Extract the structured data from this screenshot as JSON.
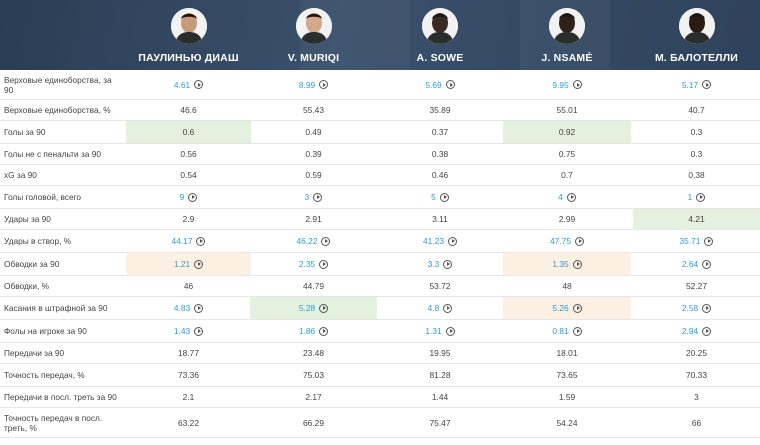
{
  "players": [
    {
      "name": "ПАУЛИНЬЮ ДИАШ",
      "avatar": "player-photo"
    },
    {
      "name": "V. MURIQI",
      "avatar": "player-photo"
    },
    {
      "name": "A. SOWE",
      "avatar": "player-photo"
    },
    {
      "name": "J. NSAMÉ",
      "avatar": "player-photo"
    },
    {
      "name": "M. БАЛОТЕЛЛИ",
      "avatar": "player-photo"
    }
  ],
  "colors": {
    "header_bg": "#34495f",
    "link": "#2a9fd6",
    "highlight_green": "#e4f1df",
    "highlight_orange": "#fbf0e1"
  },
  "rows": [
    {
      "label": "Верховые единоборства, за 90",
      "values": [
        "4.61",
        "8.99",
        "5.69",
        "9.95",
        "5.17"
      ],
      "link": [
        true,
        true,
        true,
        true,
        true
      ],
      "play": [
        true,
        true,
        true,
        true,
        true
      ],
      "hl": [
        "",
        "",
        "",
        "",
        ""
      ]
    },
    {
      "label": "Верховые единоборства, %",
      "values": [
        "46.6",
        "55.43",
        "35.89",
        "55.01",
        "40.7"
      ],
      "link": [
        false,
        false,
        false,
        false,
        false
      ],
      "play": [
        false,
        false,
        false,
        false,
        false
      ],
      "hl": [
        "",
        "",
        "",
        "",
        ""
      ]
    },
    {
      "label": "Голы за 90",
      "values": [
        "0.6",
        "0.49",
        "0.37",
        "0.92",
        "0.3"
      ],
      "link": [
        false,
        false,
        false,
        false,
        false
      ],
      "play": [
        false,
        false,
        false,
        false,
        false
      ],
      "hl": [
        "green",
        "",
        "",
        "green",
        ""
      ]
    },
    {
      "label": "Голы не с пенальти за 90",
      "values": [
        "0.56",
        "0.39",
        "0.38",
        "0.75",
        "0.3"
      ],
      "link": [
        false,
        false,
        false,
        false,
        false
      ],
      "play": [
        false,
        false,
        false,
        false,
        false
      ],
      "hl": [
        "",
        "",
        "",
        "",
        ""
      ]
    },
    {
      "label": "xG за 90",
      "values": [
        "0.54",
        "0.59",
        "0.46",
        "0.7",
        "0.38"
      ],
      "link": [
        false,
        false,
        false,
        false,
        false
      ],
      "play": [
        false,
        false,
        false,
        false,
        false
      ],
      "hl": [
        "",
        "",
        "",
        "",
        ""
      ]
    },
    {
      "label": "Голы головой, всего",
      "values": [
        "9",
        "3",
        "5",
        "4",
        "1"
      ],
      "link": [
        true,
        true,
        true,
        true,
        true
      ],
      "play": [
        true,
        true,
        true,
        true,
        true
      ],
      "hl": [
        "",
        "",
        "",
        "",
        ""
      ]
    },
    {
      "label": "Удары за 90",
      "values": [
        "2.9",
        "2.91",
        "3.11",
        "2.99",
        "4.21"
      ],
      "link": [
        false,
        false,
        false,
        false,
        false
      ],
      "play": [
        false,
        false,
        false,
        false,
        false
      ],
      "hl": [
        "",
        "",
        "",
        "",
        "green"
      ]
    },
    {
      "label": "Удары в створ, %",
      "values": [
        "44.17",
        "46.22",
        "41.23",
        "47.75",
        "35.71"
      ],
      "link": [
        true,
        true,
        true,
        true,
        true
      ],
      "play": [
        true,
        true,
        true,
        true,
        true
      ],
      "hl": [
        "",
        "",
        "",
        "",
        ""
      ]
    },
    {
      "label": "Обводки за 90",
      "values": [
        "1.21",
        "2.35",
        "3.3",
        "1.35",
        "2.64"
      ],
      "link": [
        true,
        true,
        true,
        true,
        true
      ],
      "play": [
        true,
        true,
        true,
        true,
        true
      ],
      "hl": [
        "orange",
        "",
        "",
        "orange",
        ""
      ]
    },
    {
      "label": "Обводки, %",
      "values": [
        "46",
        "44.79",
        "53.72",
        "48",
        "52.27"
      ],
      "link": [
        false,
        false,
        false,
        false,
        false
      ],
      "play": [
        false,
        false,
        false,
        false,
        false
      ],
      "hl": [
        "",
        "",
        "",
        "",
        ""
      ]
    },
    {
      "label": "Касания в штрафной за 90",
      "values": [
        "4.83",
        "5.28",
        "4.8",
        "5.26",
        "2.58"
      ],
      "link": [
        true,
        true,
        true,
        true,
        true
      ],
      "play": [
        true,
        true,
        true,
        true,
        true
      ],
      "hl": [
        "",
        "green",
        "",
        "orange",
        ""
      ]
    },
    {
      "label": "Фолы на игроке за 90",
      "values": [
        "1.43",
        "1.86",
        "1.31",
        "0.81",
        "2.94"
      ],
      "link": [
        true,
        true,
        true,
        true,
        true
      ],
      "play": [
        true,
        true,
        true,
        true,
        true
      ],
      "hl": [
        "",
        "",
        "",
        "",
        ""
      ]
    },
    {
      "label": "Передачи за 90",
      "values": [
        "18.77",
        "23.48",
        "19.95",
        "18.01",
        "20.25"
      ],
      "link": [
        false,
        false,
        false,
        false,
        false
      ],
      "play": [
        false,
        false,
        false,
        false,
        false
      ],
      "hl": [
        "",
        "",
        "",
        "",
        ""
      ]
    },
    {
      "label": "Точность передач, %",
      "values": [
        "73.36",
        "75.03",
        "81.28",
        "73.65",
        "70.33"
      ],
      "link": [
        false,
        false,
        false,
        false,
        false
      ],
      "play": [
        false,
        false,
        false,
        false,
        false
      ],
      "hl": [
        "",
        "",
        "",
        "",
        ""
      ]
    },
    {
      "label": "Передачи в посл. треть за 90",
      "values": [
        "2.1",
        "2.17",
        "1.44",
        "1.59",
        "3"
      ],
      "link": [
        false,
        false,
        false,
        false,
        false
      ],
      "play": [
        false,
        false,
        false,
        false,
        false
      ],
      "hl": [
        "",
        "",
        "",
        "",
        ""
      ]
    },
    {
      "label": "Точность передач в посл. треть, %",
      "values": [
        "63.22",
        "66.29",
        "75.47",
        "54.24",
        "66"
      ],
      "link": [
        false,
        false,
        false,
        false,
        false
      ],
      "play": [
        false,
        false,
        false,
        false,
        false
      ],
      "hl": [
        "",
        "",
        "",
        "",
        ""
      ]
    }
  ]
}
